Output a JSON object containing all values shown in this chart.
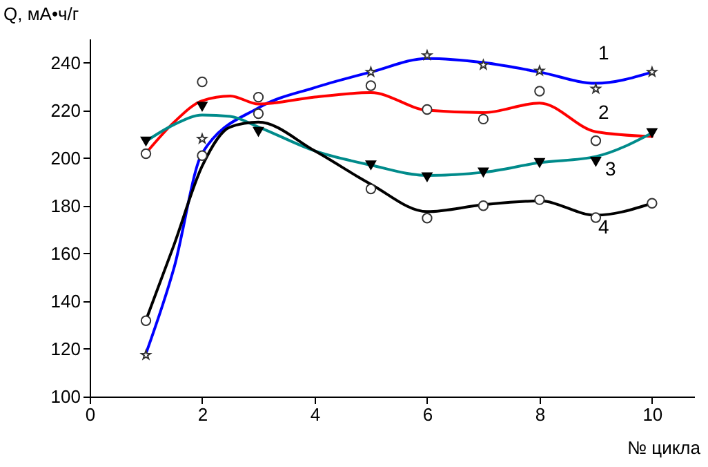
{
  "chart_data": {
    "type": "line",
    "ylabel": "Q, мА•ч/г",
    "xlabel": "№ цикла",
    "xlim": [
      0,
      10.75
    ],
    "xticks": [
      0,
      2,
      4,
      6,
      8,
      10
    ],
    "ylim": [
      100,
      250
    ],
    "yticks": [
      100,
      120,
      140,
      160,
      180,
      200,
      220,
      240
    ],
    "grid": false,
    "legend": false,
    "line_style": "solid",
    "x": [
      1,
      2,
      3,
      5,
      6,
      7,
      8,
      9,
      10
    ],
    "series": [
      {
        "name": "1",
        "color": "#0000ff",
        "x": [
          1,
          1.5,
          2,
          3,
          4,
          5,
          6,
          7,
          8,
          9,
          10
        ],
        "values": [
          118,
          154,
          202,
          221,
          229.5,
          236,
          241.7,
          240,
          236,
          231.3,
          236
        ]
      },
      {
        "name": "2",
        "color": "#ff0000",
        "x": [
          1,
          1.5,
          2,
          2.5,
          3,
          4,
          5,
          6,
          7,
          8,
          9,
          10
        ],
        "values": [
          202,
          215,
          224,
          226,
          222.6,
          225.5,
          227.4,
          220,
          219,
          223,
          211,
          209
        ]
      },
      {
        "name": "3",
        "color": "#008b8b",
        "x": [
          1,
          1.5,
          2,
          2.5,
          3,
          4,
          5,
          6,
          7,
          8,
          9,
          10
        ],
        "values": [
          207,
          214,
          218,
          217.4,
          213,
          203,
          197,
          192.7,
          194,
          198,
          200.6,
          210.5
        ]
      },
      {
        "name": "4",
        "color": "#000000",
        "x": [
          1,
          1.5,
          2,
          2.5,
          3,
          4,
          5,
          6,
          7,
          8,
          9,
          10
        ],
        "values": [
          132,
          163.6,
          196.6,
          213,
          215,
          203,
          189,
          177.5,
          180.4,
          182,
          176,
          181
        ]
      },
      {
        "type": "scatter",
        "marker": "star",
        "color": "#333333",
        "values": [
          117.4,
          208,
          null,
          236,
          243,
          239,
          236.5,
          229,
          236
        ]
      },
      {
        "type": "scatter",
        "marker": "circle",
        "color": "#333333",
        "values": [
          201.8,
          231.9,
          218.6,
          230.3,
          220.3,
          216.3,
          228,
          207.2,
          null
        ]
      },
      {
        "type": "scatter",
        "marker": "triangle",
        "color": "#000000",
        "values": [
          207,
          221.6,
          211,
          197,
          192,
          194,
          198,
          198.5,
          210.5
        ]
      },
      {
        "type": "scatter",
        "marker": "circle",
        "color": "#333333",
        "values": [
          131.8,
          201,
          225.5,
          187,
          174.8,
          180,
          182.5,
          175,
          181
        ]
      }
    ]
  }
}
